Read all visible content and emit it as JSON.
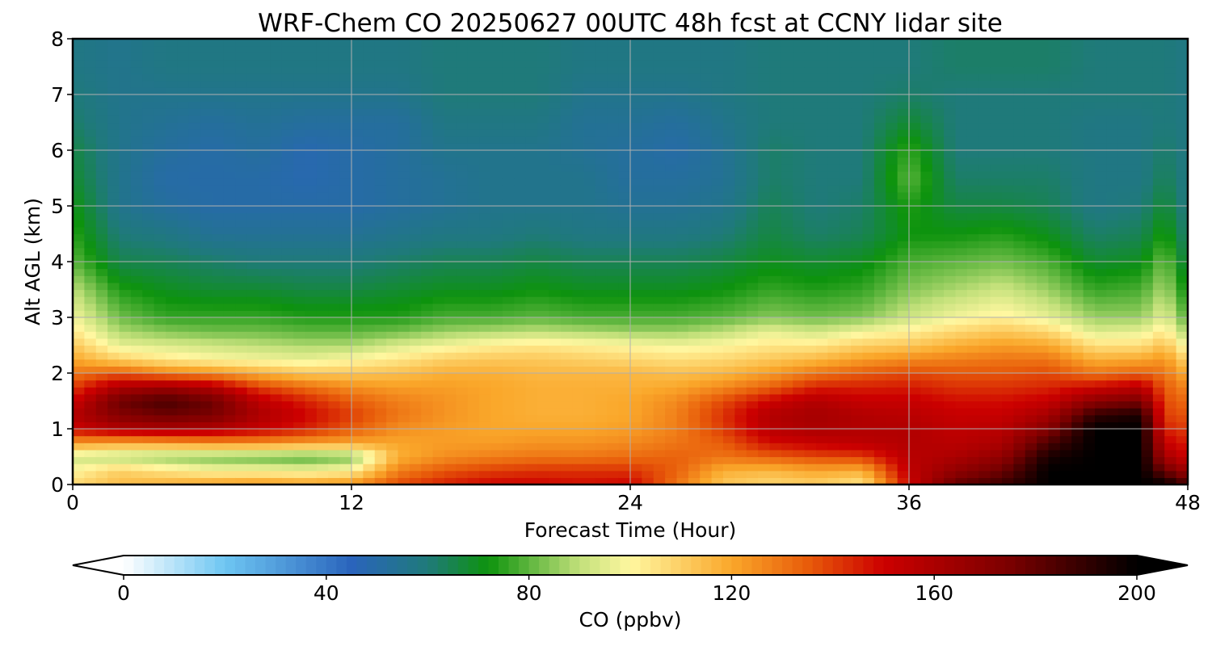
{
  "chart_data": {
    "type": "heatmap",
    "title": "WRF-Chem CO  20250627 00UTC 48h fcst at CCNY lidar site",
    "xlabel": "Forecast Time (Hour)",
    "ylabel": "Alt AGL (km)",
    "xlim": [
      0,
      48
    ],
    "ylim": [
      0,
      8
    ],
    "x_ticks": [
      0,
      12,
      24,
      36,
      48
    ],
    "y_ticks": [
      0,
      1,
      2,
      3,
      4,
      5,
      6,
      7,
      8
    ],
    "grid": true,
    "colorbar": {
      "label": "CO  (ppbv)",
      "min": 0,
      "max": 200,
      "ticks": [
        0,
        40,
        80,
        120,
        160,
        200
      ],
      "extend": "both",
      "orientation": "horizontal",
      "placement": "bottom",
      "color_stops": [
        {
          "value": 0,
          "color": "#ffffff"
        },
        {
          "value": 20,
          "color": "#6ec6f2"
        },
        {
          "value": 45,
          "color": "#2a64bc"
        },
        {
          "value": 60,
          "color": "#1f7a7a"
        },
        {
          "value": 72,
          "color": "#0d930d"
        },
        {
          "value": 90,
          "color": "#c2e07a"
        },
        {
          "value": 100,
          "color": "#fff7a0"
        },
        {
          "value": 120,
          "color": "#faa72a"
        },
        {
          "value": 135,
          "color": "#e85c0a"
        },
        {
          "value": 150,
          "color": "#cc0000"
        },
        {
          "value": 175,
          "color": "#7a0000"
        },
        {
          "value": 200,
          "color": "#000000"
        }
      ]
    },
    "profile_times_h": [
      0,
      2,
      4,
      6,
      8,
      10,
      12,
      14,
      16,
      18,
      20,
      22,
      24,
      26,
      28,
      30,
      32,
      34,
      36,
      38,
      40,
      42,
      44,
      46,
      47,
      48
    ],
    "profile_altitudes_km": [
      0,
      0.25,
      0.5,
      0.75,
      1.0,
      1.25,
      1.5,
      1.75,
      2.0,
      2.25,
      2.5,
      2.75,
      3.0,
      3.5,
      4.0,
      4.5,
      5.0,
      5.5,
      6.0,
      6.5,
      7.0,
      7.5,
      8.0
    ],
    "co_ppbv": [
      [
        108,
        100,
        92,
        122,
        150,
        158,
        150,
        140,
        130,
        120,
        112,
        104,
        98,
        90,
        80,
        75,
        72,
        68,
        66,
        62,
        60,
        58,
        58
      ],
      [
        115,
        110,
        88,
        120,
        158,
        172,
        178,
        160,
        135,
        110,
        96,
        88,
        82,
        74,
        65,
        60,
        56,
        56,
        56,
        56,
        56,
        56,
        56
      ],
      [
        118,
        105,
        84,
        122,
        160,
        178,
        185,
        165,
        128,
        104,
        94,
        84,
        76,
        70,
        64,
        58,
        52,
        50,
        52,
        54,
        56,
        58,
        58
      ],
      [
        122,
        100,
        82,
        125,
        158,
        175,
        178,
        158,
        125,
        100,
        92,
        82,
        76,
        68,
        62,
        54,
        50,
        50,
        50,
        52,
        56,
        58,
        58
      ],
      [
        124,
        100,
        80,
        125,
        152,
        160,
        155,
        140,
        118,
        98,
        90,
        82,
        76,
        68,
        60,
        54,
        50,
        50,
        52,
        54,
        56,
        58,
        58
      ],
      [
        122,
        98,
        78,
        122,
        145,
        150,
        145,
        132,
        112,
        96,
        88,
        80,
        74,
        66,
        60,
        54,
        50,
        48,
        48,
        52,
        56,
        58,
        58
      ],
      [
        125,
        102,
        82,
        120,
        135,
        140,
        135,
        125,
        112,
        100,
        88,
        80,
        74,
        66,
        60,
        54,
        50,
        50,
        50,
        52,
        56,
        58,
        58
      ],
      [
        138,
        128,
        118,
        120,
        125,
        130,
        128,
        122,
        114,
        104,
        94,
        82,
        74,
        68,
        62,
        56,
        52,
        52,
        52,
        52,
        56,
        58,
        58
      ],
      [
        145,
        136,
        125,
        122,
        122,
        124,
        124,
        122,
        118,
        110,
        98,
        86,
        78,
        70,
        64,
        58,
        54,
        54,
        56,
        58,
        60,
        60,
        60
      ],
      [
        150,
        140,
        128,
        122,
        120,
        120,
        120,
        120,
        118,
        112,
        102,
        88,
        78,
        70,
        64,
        58,
        56,
        56,
        56,
        58,
        60,
        60,
        60
      ],
      [
        150,
        142,
        130,
        124,
        120,
        118,
        118,
        118,
        116,
        112,
        104,
        90,
        80,
        72,
        66,
        60,
        56,
        56,
        56,
        58,
        60,
        60,
        60
      ],
      [
        148,
        142,
        130,
        124,
        120,
        118,
        118,
        118,
        116,
        110,
        102,
        88,
        78,
        70,
        64,
        58,
        56,
        56,
        54,
        54,
        56,
        58,
        58
      ],
      [
        150,
        142,
        132,
        126,
        122,
        120,
        120,
        118,
        116,
        108,
        100,
        86,
        78,
        70,
        64,
        58,
        54,
        52,
        52,
        54,
        56,
        58,
        58
      ],
      [
        130,
        134,
        134,
        130,
        128,
        128,
        126,
        120,
        114,
        106,
        98,
        86,
        78,
        70,
        64,
        58,
        54,
        52,
        50,
        52,
        56,
        58,
        58
      ],
      [
        112,
        118,
        130,
        135,
        140,
        142,
        138,
        126,
        116,
        108,
        100,
        90,
        80,
        72,
        66,
        60,
        56,
        54,
        54,
        56,
        58,
        58,
        58
      ],
      [
        108,
        116,
        134,
        148,
        156,
        158,
        150,
        134,
        122,
        112,
        104,
        96,
        84,
        76,
        70,
        66,
        64,
        62,
        62,
        60,
        60,
        60,
        60
      ],
      [
        110,
        120,
        138,
        152,
        160,
        162,
        158,
        145,
        130,
        116,
        104,
        92,
        82,
        74,
        68,
        62,
        60,
        60,
        60,
        60,
        60,
        60,
        60
      ],
      [
        104,
        118,
        140,
        155,
        158,
        158,
        152,
        145,
        135,
        122,
        110,
        98,
        84,
        76,
        70,
        64,
        62,
        60,
        60,
        60,
        60,
        60,
        60
      ],
      [
        150,
        154,
        156,
        158,
        158,
        156,
        152,
        146,
        138,
        126,
        112,
        102,
        92,
        84,
        78,
        72,
        74,
        80,
        76,
        68,
        62,
        60,
        60
      ],
      [
        180,
        168,
        160,
        156,
        154,
        152,
        148,
        142,
        136,
        128,
        118,
        108,
        98,
        88,
        80,
        72,
        66,
        62,
        60,
        60,
        60,
        62,
        62
      ],
      [
        188,
        178,
        168,
        160,
        156,
        152,
        148,
        142,
        136,
        130,
        122,
        112,
        102,
        92,
        82,
        74,
        66,
        62,
        60,
        60,
        60,
        62,
        62
      ],
      [
        200,
        200,
        195,
        185,
        172,
        162,
        152,
        144,
        138,
        130,
        120,
        108,
        96,
        86,
        78,
        70,
        64,
        62,
        60,
        60,
        60,
        62,
        62
      ],
      [
        200,
        200,
        200,
        200,
        200,
        190,
        170,
        150,
        130,
        118,
        106,
        94,
        86,
        76,
        68,
        62,
        58,
        58,
        58,
        58,
        60,
        60,
        60
      ],
      [
        200,
        200,
        200,
        200,
        200,
        195,
        175,
        156,
        134,
        120,
        106,
        96,
        86,
        78,
        70,
        64,
        60,
        58,
        58,
        58,
        60,
        60,
        60
      ],
      [
        200,
        178,
        162,
        152,
        145,
        140,
        138,
        135,
        130,
        124,
        114,
        104,
        96,
        88,
        82,
        74,
        68,
        64,
        62,
        60,
        60,
        60,
        60
      ],
      [
        185,
        165,
        150,
        145,
        140,
        136,
        132,
        126,
        118,
        108,
        96,
        86,
        78,
        70,
        64,
        60,
        58,
        58,
        58,
        58,
        58,
        58,
        58
      ]
    ]
  }
}
